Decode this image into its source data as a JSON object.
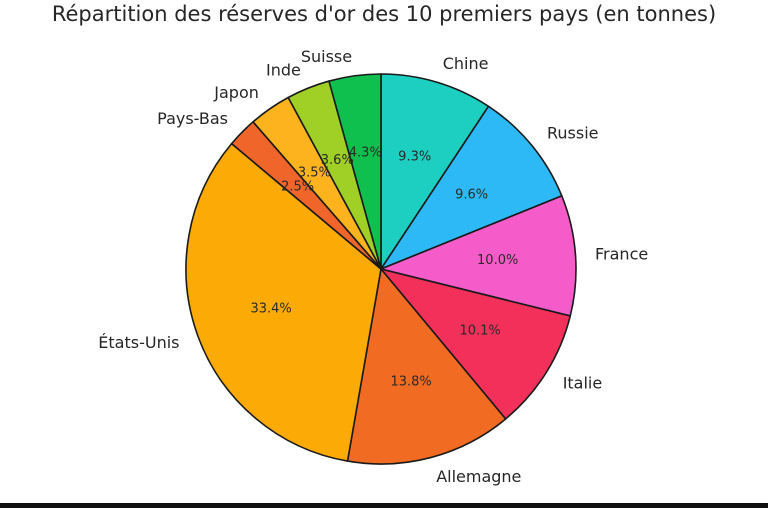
{
  "chart_data": {
    "type": "pie",
    "title": "Répartition des réserves d'or des 10 premiers pays (en tonnes)",
    "start_angle_deg": 90,
    "direction": "clockwise",
    "slices": [
      {
        "label": "Chine",
        "value": 9.3,
        "pct_label": "9.3%",
        "color": "#1ccfc0"
      },
      {
        "label": "Russie",
        "value": 9.6,
        "pct_label": "9.6%",
        "color": "#2cb9f5"
      },
      {
        "label": "France",
        "value": 10.0,
        "pct_label": "10.0%",
        "color": "#f55cc9"
      },
      {
        "label": "Italie",
        "value": 10.1,
        "pct_label": "10.1%",
        "color": "#f2305a"
      },
      {
        "label": "Allemagne",
        "value": 13.8,
        "pct_label": "13.8%",
        "color": "#f26b22"
      },
      {
        "label": "États-Unis",
        "value": 33.4,
        "pct_label": "33.4%",
        "color": "#fcab06"
      },
      {
        "label": "Pays-Bas",
        "value": 2.5,
        "pct_label": "2.5%",
        "color": "#f0652a"
      },
      {
        "label": "Japon",
        "value": 3.5,
        "pct_label": "3.5%",
        "color": "#fcb31e"
      },
      {
        "label": "Inde",
        "value": 3.6,
        "pct_label": "3.6%",
        "color": "#a0cf26"
      },
      {
        "label": "Suisse",
        "value": 4.3,
        "pct_label": "4.3%",
        "color": "#0fc04e"
      }
    ]
  }
}
